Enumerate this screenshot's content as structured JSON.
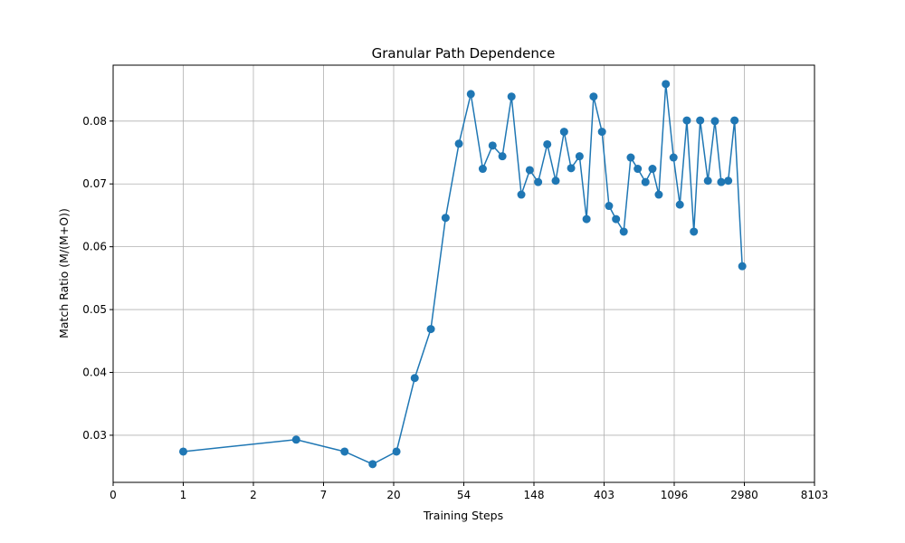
{
  "chart_data": {
    "type": "line",
    "title": "Granular Path Dependence",
    "x_label": "Training Steps",
    "y_label": "Match Ratio (M/(M+O))",
    "x": [
      1.0,
      2.61,
      3.3,
      3.7,
      4.04,
      4.3,
      4.53,
      4.74,
      4.93,
      5.1,
      5.27,
      5.41,
      5.55,
      5.68,
      5.82,
      5.94,
      6.06,
      6.19,
      6.31,
      6.43,
      6.53,
      6.65,
      6.75,
      6.85,
      6.97,
      7.07,
      7.17,
      7.28,
      7.38,
      7.48,
      7.59,
      7.69,
      7.78,
      7.88,
      7.99,
      8.08,
      8.18,
      8.28,
      8.37,
      8.48,
      8.58,
      8.67,
      8.77,
      8.86,
      8.97
    ],
    "series": [
      {
        "color": "#1f77b4",
        "values": [
          0.0274,
          0.0293,
          0.0274,
          0.0254,
          0.0274,
          0.0391,
          0.0469,
          0.0646,
          0.0764,
          0.0843,
          0.0724,
          0.0761,
          0.0744,
          0.0839,
          0.0683,
          0.0722,
          0.0703,
          0.0763,
          0.0705,
          0.0783,
          0.0725,
          0.0744,
          0.0644,
          0.0839,
          0.0783,
          0.0665,
          0.0644,
          0.0624,
          0.0742,
          0.0724,
          0.0703,
          0.0724,
          0.0683,
          0.0859,
          0.0742,
          0.0667,
          0.0801,
          0.0624,
          0.0801,
          0.0705,
          0.08,
          0.0703,
          0.0705,
          0.0801,
          0.0569
        ]
      }
    ],
    "xlim": [
      0,
      10
    ],
    "xticks": [
      0,
      1,
      {
        "value": 2,
        "label": "2"
      },
      {
        "value": 3,
        "label": "7"
      },
      {
        "value": 4,
        "label": "20"
      },
      {
        "value": 5,
        "label": "54"
      },
      {
        "value": 6,
        "label": "148"
      },
      {
        "value": 7,
        "label": "403"
      },
      {
        "value": 8,
        "label": "1096"
      },
      {
        "value": 9,
        "label": "2980"
      },
      {
        "value": 10,
        "label": "8103"
      }
    ],
    "ylim": [
      0.0225,
      0.0889
    ],
    "yticks": [
      0.03,
      0.04,
      0.05,
      0.06,
      0.07,
      0.08
    ],
    "grid": true
  }
}
